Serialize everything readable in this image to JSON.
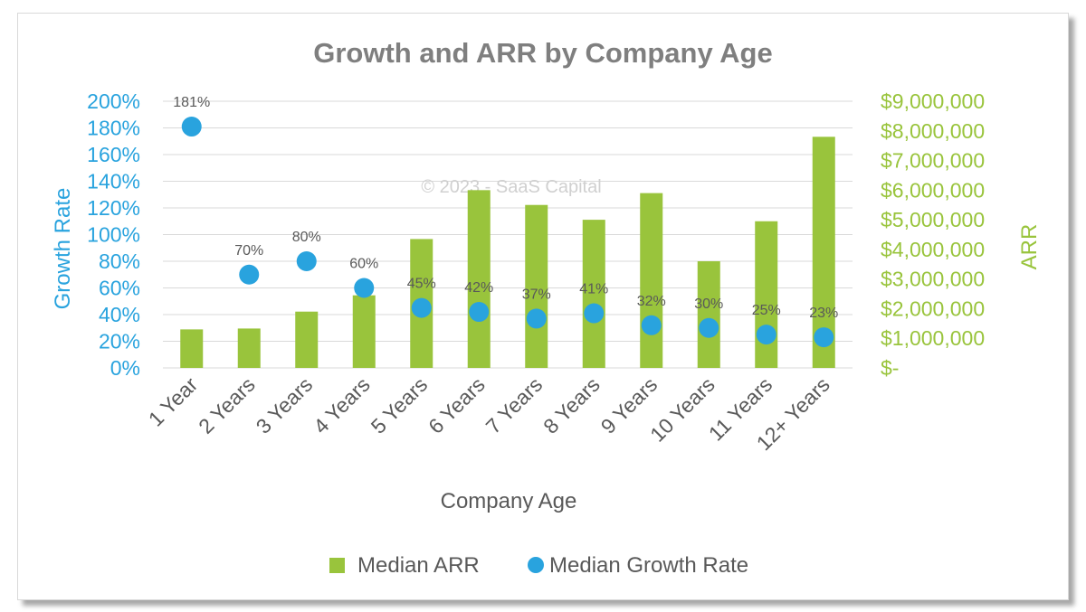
{
  "chart_data": {
    "type": "bar",
    "title": "Growth and ARR by Company Age",
    "xlabel": "Company Age",
    "ylabel_left": "Growth Rate",
    "ylabel_right": "ARR",
    "watermark": "© 2023 - SaaS Capital",
    "categories": [
      "1 Year",
      "2 Years",
      "3 Years",
      "4 Years",
      "5 Years",
      "6 Years",
      "7 Years",
      "8 Years",
      "9 Years",
      "10 Years",
      "11 Years",
      "12+ Years"
    ],
    "left_axis": {
      "min": 0,
      "max": 2.0,
      "step": 0.2,
      "tick_labels": [
        "0%",
        "20%",
        "40%",
        "60%",
        "80%",
        "100%",
        "120%",
        "140%",
        "160%",
        "180%",
        "200%"
      ]
    },
    "right_axis": {
      "min": 0,
      "max": 9000000,
      "step": 1000000,
      "tick_labels": [
        "$-",
        "$1,000,000",
        "$2,000,000",
        "$3,000,000",
        "$4,000,000",
        "$5,000,000",
        "$6,000,000",
        "$7,000,000",
        "$8,000,000",
        "$9,000,000"
      ]
    },
    "series": [
      {
        "name": "Median ARR",
        "type": "bar",
        "axis": "right",
        "values": [
          1300000,
          1330000,
          1900000,
          2450000,
          4350000,
          6000000,
          5500000,
          5000000,
          5900000,
          3600000,
          4950000,
          7800000
        ]
      },
      {
        "name": "Median Growth Rate",
        "type": "scatter",
        "axis": "left",
        "values": [
          1.81,
          0.7,
          0.8,
          0.6,
          0.45,
          0.42,
          0.37,
          0.41,
          0.32,
          0.3,
          0.25,
          0.23
        ],
        "labels": [
          "181%",
          "70%",
          "80%",
          "60%",
          "45%",
          "42%",
          "37%",
          "41%",
          "32%",
          "30%",
          "25%",
          "23%"
        ]
      }
    ],
    "grid": true,
    "legend_position": "bottom"
  },
  "colors": {
    "bar": "#99c43c",
    "point": "#29a3de",
    "left_axis_text": "#29a3de",
    "right_axis_text": "#99c43c",
    "title_text": "#7f7f7f",
    "text": "#595959",
    "grid": "#d9d9d9",
    "watermark": "#d0d0d0"
  }
}
